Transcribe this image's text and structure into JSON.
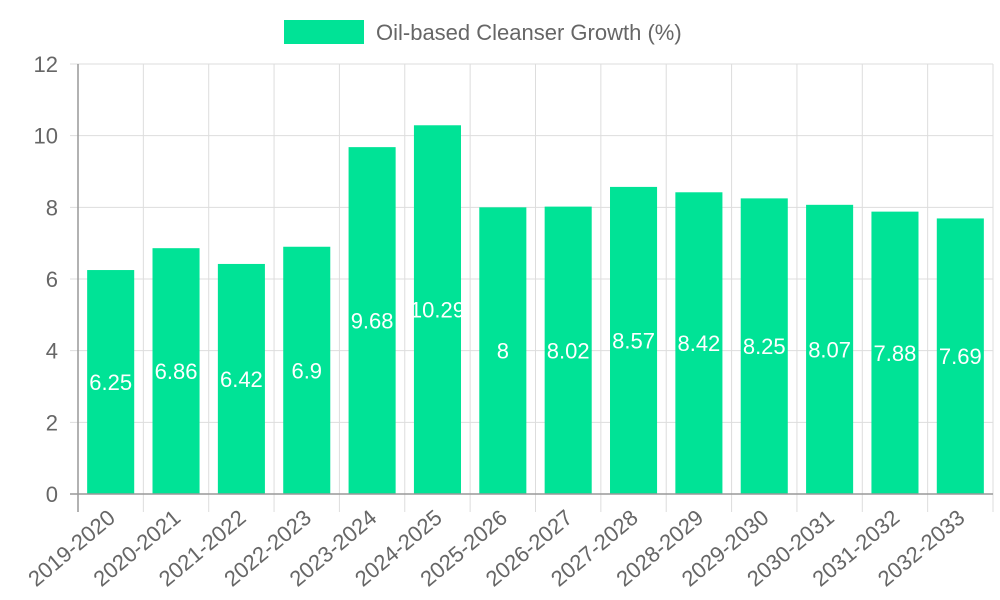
{
  "legend": {
    "label": "Oil-based Cleanser Growth (%)",
    "color": "#00e396"
  },
  "chart_data": {
    "type": "bar",
    "title": "",
    "xlabel": "",
    "ylabel": "",
    "ylim": [
      0,
      12
    ],
    "yticks": [
      0,
      2,
      4,
      6,
      8,
      10,
      12
    ],
    "grid": true,
    "legend_position": "top",
    "categories": [
      "2019-2020",
      "2020-2021",
      "2021-2022",
      "2022-2023",
      "2023-2024",
      "2024-2025",
      "2025-2026",
      "2026-2027",
      "2027-2028",
      "2028-2029",
      "2029-2030",
      "2030-2031",
      "2031-2032",
      "2032-2033"
    ],
    "series": [
      {
        "name": "Oil-based Cleanser Growth (%)",
        "color": "#00e396",
        "values": [
          6.25,
          6.86,
          6.42,
          6.9,
          9.68,
          10.29,
          8,
          8.02,
          8.57,
          8.42,
          8.25,
          8.07,
          7.88,
          7.69
        ]
      }
    ]
  },
  "colors": {
    "grid": "#dddddd",
    "axis": "#999999",
    "text": "#666666",
    "bar": "#00e396",
    "bar_label": "#ffffff"
  }
}
